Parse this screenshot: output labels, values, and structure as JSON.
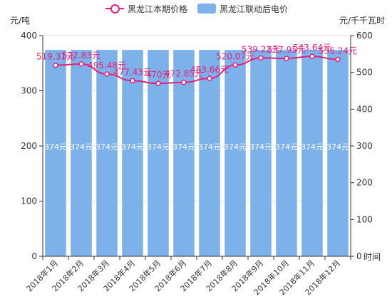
{
  "legend": {
    "line_label": "黑龙江本期价格",
    "bar_label": "黑龙江联动后电价"
  },
  "axis_units": {
    "left": "元/吨",
    "right": "元/千千瓦时",
    "x": "时间"
  },
  "colors": {
    "line": "#e2217d",
    "bar": "#7db1ea",
    "axis": "#333333",
    "grid": "#e0e0e0"
  },
  "chart_data": {
    "type": "bar",
    "categories": [
      "2018年1月",
      "2018年2月",
      "2018年3月",
      "2018年4月",
      "2018年5月",
      "2018年6月",
      "2018年7月",
      "2018年8月",
      "2018年9月",
      "2018年10月",
      "2018年11月",
      "2018年12月"
    ],
    "series": [
      {
        "name": "黑龙江本期价格",
        "type": "line",
        "axis": "left",
        "values": [
          519.31,
          522.83,
          495.48,
          477.43,
          470.0,
          472.85,
          483.66,
          520.07,
          539.22,
          537.95,
          543.64,
          535.24
        ],
        "labels": [
          "519.31元",
          "522.83元",
          "495.48元",
          "477.43元",
          "470元",
          "472.85元",
          "483.66元",
          "520.07元",
          "539.22元",
          "537.95元",
          "543.64元",
          "535.24元"
        ]
      },
      {
        "name": "黑龙江联动后电价",
        "type": "bar",
        "axis": "left",
        "values": [
          374,
          374,
          374,
          374,
          374,
          374,
          374,
          374,
          374,
          374,
          374,
          374
        ],
        "labels": [
          "374元",
          "374元",
          "374元",
          "374元",
          "374元",
          "374元",
          "374元",
          "374元",
          "374元",
          "374元",
          "374元",
          "374元"
        ]
      }
    ],
    "left_axis": {
      "label": "元/吨",
      "ylim": [
        0,
        400
      ],
      "ticks": [
        0,
        100,
        200,
        300,
        400
      ]
    },
    "right_axis": {
      "label": "元/千千瓦时",
      "ylim": [
        0,
        600
      ],
      "ticks": [
        0,
        100,
        200,
        300,
        400,
        500,
        600
      ]
    },
    "xlabel": "时间",
    "grid": true,
    "legend_position": "top-center"
  }
}
